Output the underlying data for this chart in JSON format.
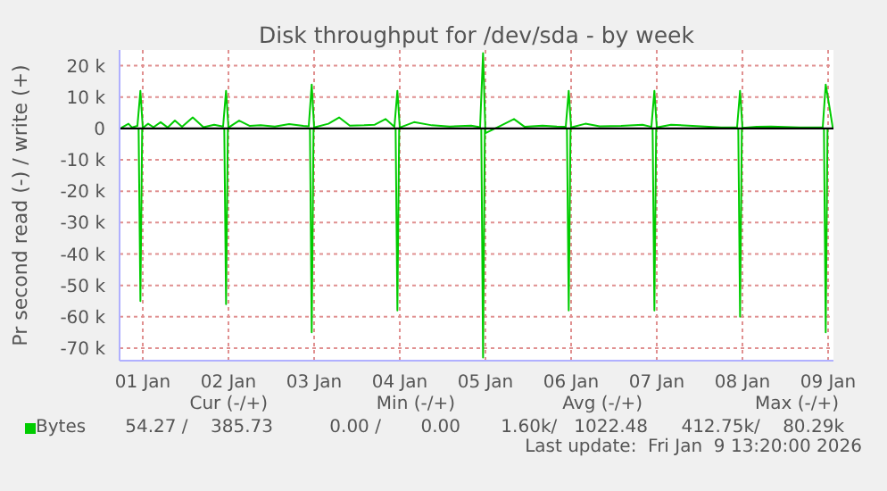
{
  "chart_data": {
    "type": "line",
    "title": "Disk throughput for /dev/sda - by week",
    "ylabel": "Pr second read (-) / write (+)",
    "xlim": [
      "2026-01-01T05:30",
      "2026-01-09T13:30"
    ],
    "xticks": [
      {
        "value": "2026-01-01T12:00",
        "label": "01 Jan"
      },
      {
        "value": "2026-01-02T12:00",
        "label": "02 Jan"
      },
      {
        "value": "2026-01-03T12:00",
        "label": "03 Jan"
      },
      {
        "value": "2026-01-04T12:00",
        "label": "04 Jan"
      },
      {
        "value": "2026-01-05T12:00",
        "label": "05 Jan"
      },
      {
        "value": "2026-01-06T12:00",
        "label": "06 Jan"
      },
      {
        "value": "2026-01-07T12:00",
        "label": "07 Jan"
      },
      {
        "value": "2026-01-08T12:00",
        "label": "08 Jan"
      },
      {
        "value": "2026-01-09T12:00",
        "label": "09 Jan"
      }
    ],
    "ylim": [
      -74000,
      25000
    ],
    "yticks": [
      {
        "value": 20000,
        "label": "20 k"
      },
      {
        "value": 10000,
        "label": "10 k"
      },
      0,
      {
        "value": -10000,
        "label": "-10 k"
      },
      {
        "value": -20000,
        "label": "-20 k"
      },
      {
        "value": -30000,
        "label": "-30 k"
      },
      {
        "value": -40000,
        "label": "-40 k"
      },
      {
        "value": -50000,
        "label": "-50 k"
      },
      {
        "value": -60000,
        "label": "-60 k"
      },
      {
        "value": -70000,
        "label": "-70 k"
      }
    ],
    "grid": true,
    "legend": "bottom left",
    "marker": "none",
    "line_style": "solid",
    "ref_lines": [
      {
        "axis": "y",
        "value": 0,
        "color": "#000000"
      }
    ],
    "series": [
      {
        "name": "Bytes",
        "color": "#00cc00",
        "x": [
          "2026-01-01T06:00",
          "2026-01-01T08:00",
          "2026-01-01T09:00",
          "2026-01-01T10:30",
          "2026-01-01T11:20",
          "2026-01-01T12:00",
          "2026-01-01T13:30",
          "2026-01-01T15:00",
          "2026-01-01T17:00",
          "2026-01-01T19:00",
          "2026-01-01T21:00",
          "2026-01-01T23:00",
          "2026-01-02T02:00",
          "2026-01-02T05:00",
          "2026-01-02T08:00",
          "2026-01-02T10:30",
          "2026-01-02T11:20",
          "2026-01-02T12:00",
          "2026-01-02T15:00",
          "2026-01-02T18:00",
          "2026-01-02T21:00",
          "2026-01-03T01:00",
          "2026-01-03T05:00",
          "2026-01-03T09:00",
          "2026-01-03T10:30",
          "2026-01-03T11:20",
          "2026-01-03T12:00",
          "2026-01-03T16:00",
          "2026-01-03T19:00",
          "2026-01-03T22:00",
          "2026-01-04T02:00",
          "2026-01-04T05:00",
          "2026-01-04T08:00",
          "2026-01-04T10:30",
          "2026-01-04T11:20",
          "2026-01-04T12:00",
          "2026-01-04T16:00",
          "2026-01-04T21:00",
          "2026-01-05T02:00",
          "2026-01-05T08:00",
          "2026-01-05T10:30",
          "2026-01-05T11:20",
          "2026-01-05T12:00",
          "2026-01-05T16:00",
          "2026-01-05T20:00",
          "2026-01-05T23:00",
          "2026-01-06T04:00",
          "2026-01-06T08:00",
          "2026-01-06T10:30",
          "2026-01-06T11:20",
          "2026-01-06T12:00",
          "2026-01-06T16:00",
          "2026-01-06T20:00",
          "2026-01-07T02:00",
          "2026-01-07T08:00",
          "2026-01-07T10:30",
          "2026-01-07T11:20",
          "2026-01-07T12:00",
          "2026-01-07T16:00",
          "2026-01-07T22:00",
          "2026-01-08T06:00",
          "2026-01-08T10:30",
          "2026-01-08T11:20",
          "2026-01-08T12:00",
          "2026-01-08T16:00",
          "2026-01-08T20:00",
          "2026-01-09T04:00",
          "2026-01-09T10:30",
          "2026-01-09T11:20",
          "2026-01-09T12:30",
          "2026-01-09T13:20"
        ],
        "values": [
          200,
          1500,
          300,
          800,
          12000,
          200,
          1500,
          400,
          2000,
          300,
          2500,
          500,
          3500,
          400,
          1200,
          600,
          12000,
          300,
          2500,
          800,
          1000,
          600,
          1400,
          800,
          700,
          14000,
          300,
          1500,
          3500,
          900,
          1000,
          1200,
          3000,
          500,
          12000,
          300,
          2000,
          1000,
          600,
          900,
          400,
          24000,
          -1500,
          700,
          3000,
          500,
          900,
          600,
          500,
          12000,
          300,
          1500,
          700,
          800,
          1200,
          500,
          12000,
          300,
          1200,
          800,
          300,
          400,
          12000,
          200,
          500,
          600,
          300,
          400,
          14000,
          6000,
          0
        ]
      },
      {
        "color": "#00cc00",
        "x": [
          "2026-01-01T06:00",
          "2026-01-01T10:50",
          "2026-01-01T11:20",
          "2026-01-01T11:50",
          "2026-01-02T10:50",
          "2026-01-02T11:20",
          "2026-01-02T11:50",
          "2026-01-03T10:50",
          "2026-01-03T11:20",
          "2026-01-03T11:50",
          "2026-01-04T10:50",
          "2026-01-04T11:20",
          "2026-01-04T11:50",
          "2026-01-05T10:50",
          "2026-01-05T11:20",
          "2026-01-05T11:50",
          "2026-01-06T10:50",
          "2026-01-06T11:20",
          "2026-01-06T11:50",
          "2026-01-07T10:50",
          "2026-01-07T11:20",
          "2026-01-07T11:50",
          "2026-01-08T10:50",
          "2026-01-08T11:20",
          "2026-01-08T11:50",
          "2026-01-09T10:50",
          "2026-01-09T11:20",
          "2026-01-09T11:50",
          "2026-01-09T13:20"
        ],
        "values": [
          0,
          0,
          -55000,
          0,
          0,
          -56000,
          0,
          0,
          -65000,
          0,
          0,
          -58000,
          0,
          0,
          -73000,
          0,
          0,
          -58000,
          0,
          0,
          -58000,
          0,
          0,
          -60000,
          0,
          0,
          -65000,
          0,
          0
        ]
      }
    ],
    "annotations": [
      "Cur (-/+)",
      "Min (-/+)",
      "Avg (-/+)",
      "Max (-/+)",
      "54.27 /    385.73",
      "0.00 /       0.00",
      "1.60k/   1022.48",
      "412.75k/    80.29k",
      "Last update:  Fri Jan  9 13:20:00 2026"
    ]
  }
}
